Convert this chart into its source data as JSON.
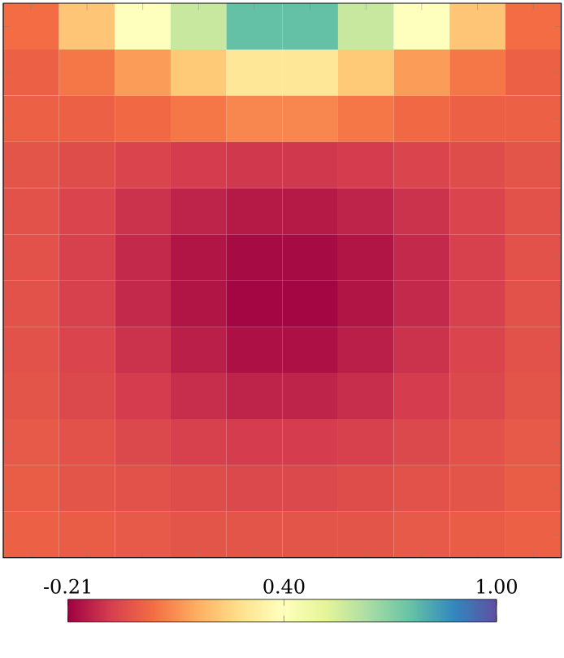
{
  "chart_data": {
    "type": "heatmap",
    "categories": [
      null,
      null,
      null,
      null,
      null,
      null,
      null,
      null,
      null,
      null
    ],
    "y_categories": [
      null,
      null,
      null,
      null,
      null,
      null,
      null,
      null,
      null,
      null,
      null,
      null
    ],
    "cells": [
      [
        0.03,
        0.21,
        0.4,
        0.58,
        0.76,
        0.76,
        0.58,
        0.4,
        0.21,
        0.03
      ],
      [
        0.0,
        0.05,
        0.12,
        0.22,
        0.3,
        0.3,
        0.22,
        0.12,
        0.05,
        0.0
      ],
      [
        0.0,
        0.0,
        0.02,
        0.05,
        0.08,
        0.08,
        0.05,
        0.02,
        0.0,
        0.0
      ],
      [
        -0.03,
        -0.05,
        -0.07,
        -0.09,
        -0.1,
        -0.1,
        -0.09,
        -0.07,
        -0.05,
        -0.03
      ],
      [
        -0.04,
        -0.07,
        -0.11,
        -0.14,
        -0.16,
        -0.16,
        -0.14,
        -0.11,
        -0.07,
        -0.04
      ],
      [
        -0.04,
        -0.08,
        -0.13,
        -0.17,
        -0.19,
        -0.19,
        -0.17,
        -0.13,
        -0.08,
        -0.04
      ],
      [
        -0.04,
        -0.08,
        -0.13,
        -0.17,
        -0.2,
        -0.2,
        -0.17,
        -0.13,
        -0.08,
        -0.04
      ],
      [
        -0.04,
        -0.07,
        -0.11,
        -0.15,
        -0.18,
        -0.18,
        -0.15,
        -0.11,
        -0.07,
        -0.04
      ],
      [
        -0.03,
        -0.06,
        -0.09,
        -0.12,
        -0.14,
        -0.14,
        -0.12,
        -0.09,
        -0.06,
        -0.03
      ],
      [
        -0.02,
        -0.04,
        -0.06,
        -0.08,
        -0.09,
        -0.09,
        -0.08,
        -0.06,
        -0.04,
        -0.02
      ],
      [
        -0.01,
        -0.03,
        -0.04,
        -0.05,
        -0.06,
        -0.06,
        -0.05,
        -0.04,
        -0.03,
        -0.01
      ],
      [
        0.0,
        -0.01,
        -0.02,
        -0.03,
        -0.03,
        -0.03,
        -0.03,
        -0.02,
        -0.01,
        0.0
      ]
    ],
    "clim": [
      -0.21,
      1.0
    ],
    "cticks": [
      {
        "value": -0.21,
        "label": "-0.21"
      },
      {
        "value": 0.4,
        "label": "0.40"
      },
      {
        "value": 1.0,
        "label": "1.00"
      }
    ]
  }
}
